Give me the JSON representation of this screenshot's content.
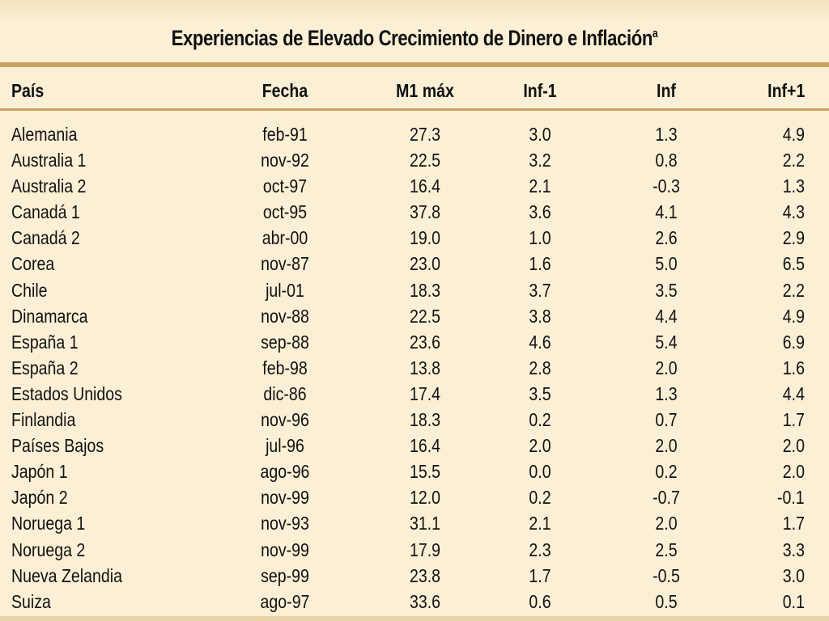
{
  "table": {
    "title": "Experiencias de Elevado Crecimiento de Dinero e Inflación",
    "title_superscript": "a",
    "columns": [
      "País",
      "Fecha",
      "M1 máx",
      "Inf-1",
      "Inf",
      "Inf+1"
    ],
    "rows": [
      {
        "pais": "Alemania",
        "fecha": "feb-91",
        "m1": "27.3",
        "inf_1": "3.0",
        "inf": "1.3",
        "inf_p1": "4.9"
      },
      {
        "pais": "Australia 1",
        "fecha": "nov-92",
        "m1": "22.5",
        "inf_1": "3.2",
        "inf": "0.8",
        "inf_p1": "2.2"
      },
      {
        "pais": "Australia 2",
        "fecha": "oct-97",
        "m1": "16.4",
        "inf_1": "2.1",
        "inf": "-0.3",
        "inf_p1": "1.3"
      },
      {
        "pais": "Canadá 1",
        "fecha": "oct-95",
        "m1": "37.8",
        "inf_1": "3.6",
        "inf": "4.1",
        "inf_p1": "4.3"
      },
      {
        "pais": "Canadá 2",
        "fecha": "abr-00",
        "m1": "19.0",
        "inf_1": "1.0",
        "inf": "2.6",
        "inf_p1": "2.9"
      },
      {
        "pais": "Corea",
        "fecha": "nov-87",
        "m1": "23.0",
        "inf_1": "1.6",
        "inf": "5.0",
        "inf_p1": "6.5"
      },
      {
        "pais": "Chile",
        "fecha": "jul-01",
        "m1": "18.3",
        "inf_1": "3.7",
        "inf": "3.5",
        "inf_p1": "2.2"
      },
      {
        "pais": "Dinamarca",
        "fecha": "nov-88",
        "m1": "22.5",
        "inf_1": "3.8",
        "inf": "4.4",
        "inf_p1": "4.9"
      },
      {
        "pais": "España 1",
        "fecha": "sep-88",
        "m1": "23.6",
        "inf_1": "4.6",
        "inf": "5.4",
        "inf_p1": "6.9"
      },
      {
        "pais": "España 2",
        "fecha": "feb-98",
        "m1": "13.8",
        "inf_1": "2.8",
        "inf": "2.0",
        "inf_p1": "1.6"
      },
      {
        "pais": "Estados Unidos",
        "fecha": "dic-86",
        "m1": "17.4",
        "inf_1": "3.5",
        "inf": "1.3",
        "inf_p1": "4.4"
      },
      {
        "pais": "Finlandia",
        "fecha": "nov-96",
        "m1": "18.3",
        "inf_1": "0.2",
        "inf": "0.7",
        "inf_p1": "1.7"
      },
      {
        "pais": "Países Bajos",
        "fecha": "jul-96",
        "m1": "16.4",
        "inf_1": "2.0",
        "inf": "2.0",
        "inf_p1": "2.0"
      },
      {
        "pais": "Japón 1",
        "fecha": "ago-96",
        "m1": "15.5",
        "inf_1": "0.0",
        "inf": "0.2",
        "inf_p1": "2.0"
      },
      {
        "pais": "Japón 2",
        "fecha": "nov-99",
        "m1": "12.0",
        "inf_1": "0.2",
        "inf": "-0.7",
        "inf_p1": "-0.1"
      },
      {
        "pais": "Noruega 1",
        "fecha": "nov-93",
        "m1": "31.1",
        "inf_1": "2.1",
        "inf": "2.0",
        "inf_p1": "1.7"
      },
      {
        "pais": "Noruega 2",
        "fecha": "nov-99",
        "m1": "17.9",
        "inf_1": "2.3",
        "inf": "2.5",
        "inf_p1": "3.3"
      },
      {
        "pais": "Nueva Zelandia",
        "fecha": "sep-99",
        "m1": "23.8",
        "inf_1": "1.7",
        "inf": "-0.5",
        "inf_p1": "3.0"
      },
      {
        "pais": "Suiza",
        "fecha": "ago-97",
        "m1": "33.6",
        "inf_1": "0.6",
        "inf": "0.5",
        "inf_p1": "0.1"
      }
    ]
  },
  "colors": {
    "background": "#fbf0d6",
    "rule": "#c8a35c",
    "text": "#111111"
  }
}
